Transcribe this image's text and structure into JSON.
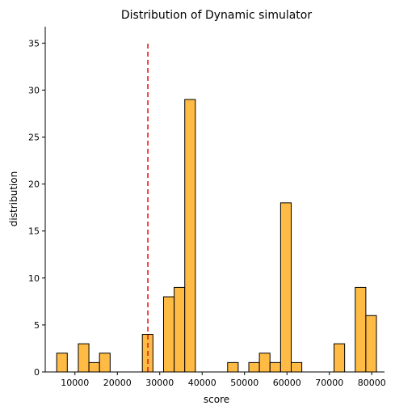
{
  "chart_data": {
    "type": "bar",
    "title": "Distribution of Dynamic simulator",
    "xlabel": "score",
    "ylabel": "distribution",
    "xlim": [
      3000,
      83000
    ],
    "ylim": [
      0,
      36.75
    ],
    "xticks": [
      10000,
      20000,
      30000,
      40000,
      50000,
      60000,
      70000,
      80000
    ],
    "yticks": [
      0,
      5,
      10,
      15,
      20,
      25,
      30,
      35
    ],
    "bin_width": 2500,
    "bins": [
      {
        "start": 5700,
        "count": 2
      },
      {
        "start": 10800,
        "count": 3
      },
      {
        "start": 13300,
        "count": 1
      },
      {
        "start": 15800,
        "count": 2
      },
      {
        "start": 25900,
        "count": 4
      },
      {
        "start": 30900,
        "count": 8
      },
      {
        "start": 33400,
        "count": 9
      },
      {
        "start": 35900,
        "count": 29
      },
      {
        "start": 46000,
        "count": 1
      },
      {
        "start": 51000,
        "count": 1
      },
      {
        "start": 53500,
        "count": 2
      },
      {
        "start": 56000,
        "count": 1
      },
      {
        "start": 58500,
        "count": 18
      },
      {
        "start": 61000,
        "count": 1
      },
      {
        "start": 71100,
        "count": 3
      },
      {
        "start": 76100,
        "count": 9
      },
      {
        "start": 78600,
        "count": 6
      }
    ],
    "reference_line": {
      "x": 27200,
      "y_top": 35,
      "color": "#e41a1c",
      "style": "dashed"
    },
    "bar_color": "#ffbb44",
    "edge_color": "#000000",
    "grid": false,
    "spines": [
      "left",
      "bottom"
    ]
  }
}
